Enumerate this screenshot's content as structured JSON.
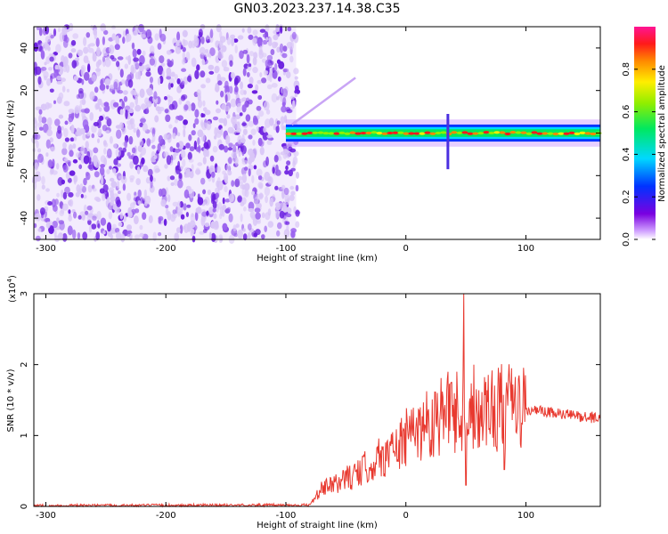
{
  "title": "GN03.2023.237.14.38.C35",
  "colors": {
    "line": "#e8392f",
    "axis": "#000000",
    "background": "#ffffff",
    "noise_dark": "#6a1de0",
    "noise_light": "#d9c6f7"
  },
  "chart_data": [
    {
      "type": "heatmap",
      "name": "spectrogram",
      "xlabel": "Height of straight line (km)",
      "ylabel": "Frequency (Hz)",
      "xlim": [
        -310,
        162
      ],
      "ylim": [
        -50,
        50
      ],
      "x_ticks": [
        -300,
        -200,
        -100,
        0,
        100
      ],
      "y_ticks": [
        -40,
        -20,
        0,
        20,
        40
      ],
      "noise_region_x": [
        -310,
        -90
      ],
      "signal_band": {
        "x_start": -100,
        "x_end": 162,
        "center_hz": 0,
        "half_width_hz": 4
      },
      "colorbar": {
        "label": "Normalized spectral amplitude",
        "range": [
          0.0,
          1.0
        ],
        "ticks": [
          0.0,
          0.2,
          0.4,
          0.6,
          0.8
        ],
        "tick_labels": [
          "0.0",
          "0.2",
          "0.4",
          "0.6",
          "0.8"
        ],
        "colormap": "rainbow (white → violet → blue → cyan → green → yellow → red → magenta)"
      }
    },
    {
      "type": "line",
      "name": "snr",
      "xlabel": "Height of straight line (km)",
      "ylabel": "SNR (10 * v/v)",
      "y_multiplier": "(x10",
      "y_multiplier_exp": "4",
      "y_multiplier_close": ")",
      "xlim": [
        -310,
        162
      ],
      "ylim": [
        0,
        3
      ],
      "x_ticks": [
        -300,
        -200,
        -100,
        0,
        100
      ],
      "y_ticks": [
        0,
        1,
        2,
        3
      ],
      "envelope": {
        "x": [
          -310,
          -80,
          -70,
          -60,
          -50,
          -40,
          -30,
          -20,
          -10,
          0,
          10,
          20,
          30,
          40,
          50,
          60,
          70,
          80,
          90,
          100,
          110,
          120,
          130,
          140,
          150,
          162
        ],
        "y": [
          0.01,
          0.02,
          0.25,
          0.3,
          0.4,
          0.45,
          0.6,
          0.7,
          0.8,
          0.95,
          1.1,
          1.2,
          1.3,
          1.35,
          1.4,
          1.4,
          1.4,
          1.4,
          1.4,
          1.35,
          1.35,
          1.32,
          1.3,
          1.28,
          1.26,
          1.25
        ]
      },
      "peaks": [
        {
          "x": 48,
          "y": 3.0
        },
        {
          "x": 50,
          "y": 0.3
        },
        {
          "x": 82,
          "y": 0.52
        },
        {
          "x": 84,
          "y": 1.75
        },
        {
          "x": 38,
          "y": 1.75
        },
        {
          "x": 42,
          "y": 0.9
        },
        {
          "x": 26,
          "y": 1.6
        }
      ]
    }
  ]
}
